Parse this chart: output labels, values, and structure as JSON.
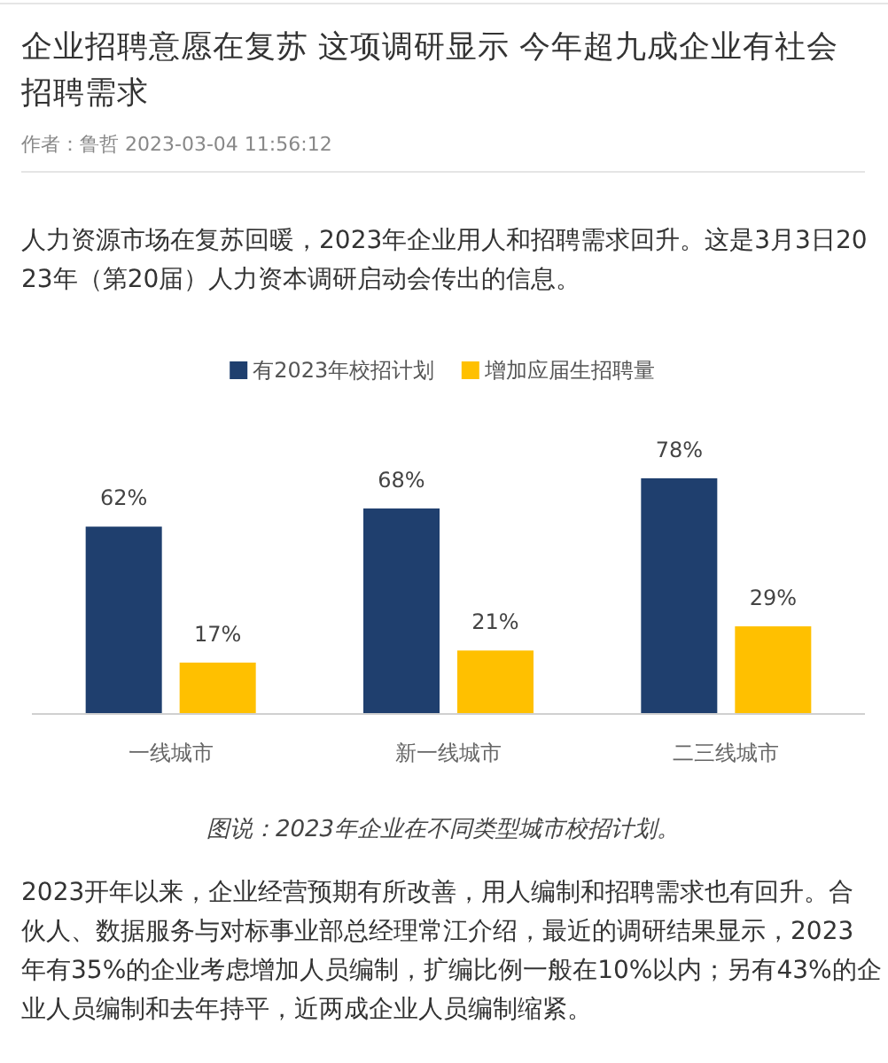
{
  "chart_data": {
    "type": "bar",
    "title": "企业招聘意愿在复苏 这项调研显示 今年超九成企业有社会招聘需求",
    "subtitle": "作者：鲁哲  2023-03-04 11:56:12",
    "categories": [
      "一线城市",
      "新一线城市",
      "二三线城市"
    ],
    "series": [
      {
        "name": "有2023年校招计划",
        "color": "#1f3f6e",
        "values": [
          62,
          68,
          78
        ],
        "value_labels": [
          "62%",
          "68%",
          "78%"
        ]
      },
      {
        "name": "增加应届生招聘量",
        "color": "#ffc000",
        "values": [
          17,
          21,
          29
        ],
        "value_labels": [
          "17%",
          "21%",
          "29%"
        ]
      }
    ],
    "legend": "top",
    "grid": false,
    "annotations": [
      "人力资源市场在复苏回暖，2023年企业用人和招聘需求回升。这是3月3日2023年（第20届）人力资本调研启动会传出的信息。",
      "图说：2023年企业在不同类型城市校招计划。",
      "2023开年以来，企业经营预期有所改善，用人编制和招聘需求也有回升。合伙人、数据服务与对标事业部总经理常江介绍，最近的调研结果显示，2023年有35%的企业考虑增加人员编制，扩编比例一般在10%以内；另有43%的企业人员编制和去年持平，近两成企业人员编制缩紧。"
    ]
  }
}
